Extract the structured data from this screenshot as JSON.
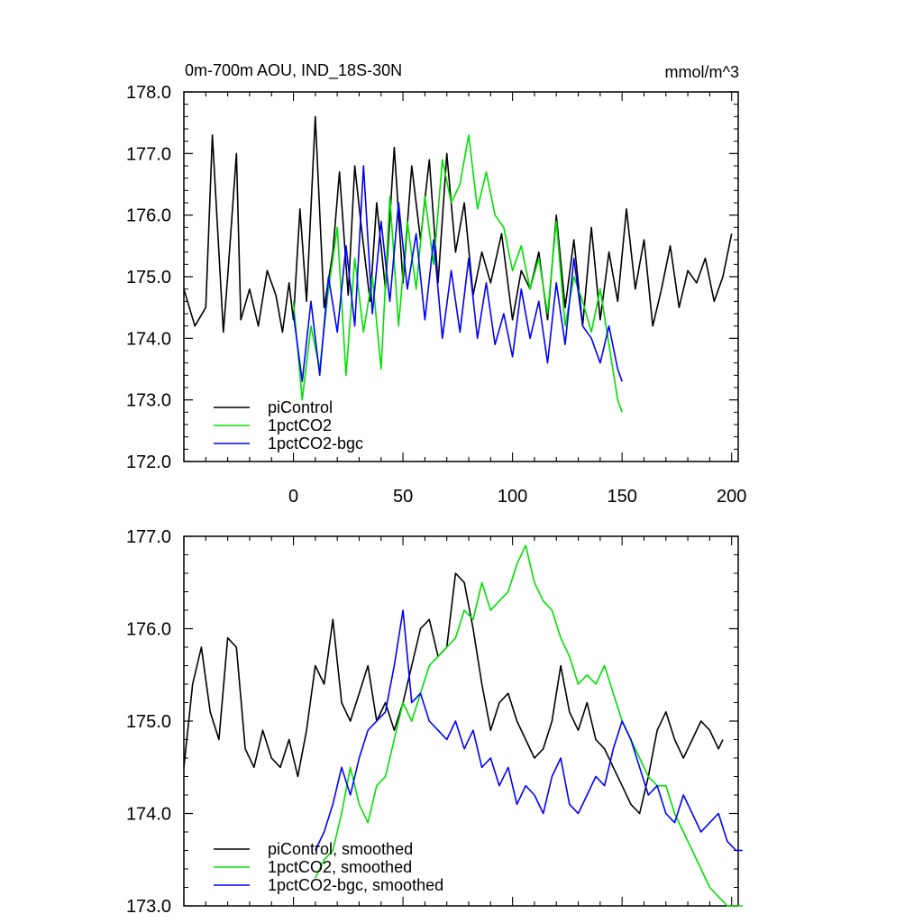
{
  "chart_data": [
    {
      "type": "line",
      "title": "0m-700m AOU, IND_18S-30N",
      "units": "mmol/m^3",
      "xlim": [
        -50,
        203
      ],
      "ylim": [
        172,
        178
      ],
      "xticks": [
        0,
        50,
        100,
        150,
        200
      ],
      "xtick_labels": [
        "0",
        "50",
        "100",
        "150",
        "200"
      ],
      "yticks": [
        172,
        173,
        174,
        175,
        176,
        177,
        178
      ],
      "ytick_labels": [
        "172.0",
        "173.0",
        "174.0",
        "175.0",
        "176.0",
        "177.0",
        "178.0"
      ],
      "legend_position": "bottom-left",
      "series": [
        {
          "name": "piControl",
          "color": "#000000",
          "x": [
            -50,
            -45,
            -40,
            -37,
            -32,
            -30,
            -26,
            -24,
            -20,
            -16,
            -12,
            -8,
            -5,
            -2,
            0,
            3,
            6,
            10,
            14,
            18,
            21,
            25,
            28,
            31,
            35,
            38,
            42,
            46,
            50,
            54,
            58,
            62,
            66,
            70,
            74,
            78,
            82,
            86,
            90,
            95,
            100,
            104,
            108,
            112,
            116,
            120,
            124,
            128,
            132,
            136,
            140,
            144,
            148,
            152,
            156,
            160,
            164,
            168,
            172,
            176,
            180,
            184,
            188,
            192,
            196,
            200
          ],
          "values": [
            174.8,
            174.2,
            174.5,
            177.3,
            174.1,
            175.0,
            177.0,
            174.3,
            174.8,
            174.2,
            175.1,
            174.7,
            174.1,
            174.9,
            174.3,
            176.1,
            174.6,
            177.6,
            174.5,
            175.4,
            176.7,
            174.7,
            176.8,
            175.8,
            174.6,
            176.2,
            174.8,
            177.1,
            174.9,
            176.8,
            175.6,
            176.9,
            174.9,
            177.0,
            175.4,
            176.2,
            174.7,
            175.4,
            174.9,
            175.7,
            174.3,
            175.1,
            174.8,
            175.4,
            174.3,
            176.0,
            174.5,
            175.6,
            174.2,
            175.8,
            174.3,
            175.4,
            174.6,
            176.1,
            174.8,
            175.6,
            174.2,
            174.8,
            175.5,
            174.5,
            175.1,
            174.9,
            175.3,
            174.6,
            175.0,
            175.7
          ]
        },
        {
          "name": "1pctCO2",
          "color": "#00e000",
          "x": [
            0,
            4,
            8,
            12,
            16,
            20,
            24,
            28,
            32,
            36,
            40,
            44,
            48,
            52,
            56,
            60,
            64,
            68,
            72,
            76,
            80,
            84,
            88,
            92,
            96,
            100,
            104,
            108,
            112,
            116,
            120,
            124,
            128,
            132,
            136,
            140,
            144,
            148,
            150
          ],
          "values": [
            174.6,
            173.0,
            174.2,
            173.5,
            174.8,
            175.8,
            173.4,
            175.3,
            174.1,
            175.0,
            173.5,
            176.3,
            174.2,
            175.9,
            174.8,
            176.3,
            175.2,
            176.9,
            176.2,
            176.5,
            177.3,
            176.1,
            176.7,
            176.0,
            175.8,
            175.1,
            175.5,
            174.8,
            175.3,
            174.4,
            175.9,
            174.2,
            175.0,
            174.6,
            174.1,
            174.8,
            173.9,
            173.0,
            172.8
          ]
        },
        {
          "name": "1pctCO2-bgc",
          "color": "#0000ff",
          "x": [
            0,
            4,
            8,
            12,
            16,
            20,
            24,
            28,
            32,
            36,
            40,
            44,
            48,
            52,
            56,
            60,
            64,
            68,
            72,
            76,
            80,
            84,
            88,
            92,
            96,
            100,
            104,
            108,
            112,
            116,
            120,
            124,
            128,
            132,
            136,
            140,
            144,
            148,
            150
          ],
          "values": [
            174.4,
            173.3,
            174.6,
            173.4,
            175.0,
            174.1,
            175.5,
            174.2,
            176.8,
            174.4,
            175.9,
            174.6,
            176.2,
            174.8,
            175.7,
            174.3,
            175.6,
            174.0,
            175.1,
            174.1,
            175.3,
            174.0,
            174.9,
            173.9,
            174.4,
            173.7,
            174.8,
            174.0,
            174.6,
            173.6,
            174.9,
            173.9,
            175.3,
            174.2,
            174.0,
            173.6,
            174.2,
            173.5,
            173.3
          ]
        }
      ]
    },
    {
      "type": "line",
      "title": "",
      "xlim": [
        -50,
        203
      ],
      "ylim": [
        173,
        177
      ],
      "xticks": [
        0,
        50,
        100,
        150,
        200
      ],
      "yticks": [
        173,
        174,
        175,
        176,
        177
      ],
      "ytick_labels": [
        "173.0",
        "174.0",
        "175.0",
        "176.0",
        "177.0"
      ],
      "legend_position": "bottom-left",
      "series": [
        {
          "name": "piControl, smoothed",
          "color": "#000000",
          "x": [
            -50,
            -46,
            -42,
            -38,
            -34,
            -30,
            -26,
            -22,
            -18,
            -14,
            -10,
            -6,
            -2,
            2,
            6,
            10,
            14,
            18,
            22,
            26,
            30,
            34,
            38,
            42,
            46,
            50,
            54,
            58,
            62,
            66,
            70,
            74,
            78,
            82,
            86,
            90,
            94,
            98,
            102,
            106,
            110,
            114,
            118,
            122,
            126,
            130,
            134,
            138,
            142,
            146,
            150,
            154,
            158,
            162,
            166,
            170,
            174,
            178,
            182,
            186,
            190,
            194,
            196
          ],
          "values": [
            174.5,
            175.4,
            175.8,
            175.1,
            174.8,
            175.9,
            175.8,
            174.7,
            174.5,
            174.9,
            174.6,
            174.5,
            174.8,
            174.4,
            174.9,
            175.6,
            175.4,
            176.1,
            175.2,
            175.0,
            175.3,
            175.6,
            175.0,
            175.2,
            174.9,
            175.2,
            175.6,
            176.0,
            176.1,
            175.7,
            175.8,
            176.6,
            176.5,
            176.0,
            175.4,
            174.9,
            175.2,
            175.3,
            175.0,
            174.8,
            174.6,
            174.7,
            175.0,
            175.6,
            175.1,
            174.9,
            175.2,
            174.8,
            174.7,
            174.5,
            174.3,
            174.1,
            174.0,
            174.4,
            174.9,
            175.1,
            174.8,
            174.6,
            174.8,
            175.0,
            174.9,
            174.7,
            174.8
          ]
        },
        {
          "name": "1pctCO2, smoothed",
          "color": "#00e000",
          "x": [
            10,
            14,
            18,
            22,
            26,
            30,
            34,
            38,
            42,
            46,
            50,
            54,
            58,
            62,
            66,
            70,
            74,
            78,
            82,
            86,
            90,
            94,
            98,
            102,
            106,
            110,
            114,
            118,
            122,
            126,
            130,
            134,
            138,
            142,
            146,
            150,
            154,
            158,
            162,
            166,
            170,
            174,
            178,
            182,
            186,
            190,
            194,
            198,
            202,
            205
          ],
          "values": [
            173.3,
            173.5,
            173.6,
            174.0,
            174.5,
            174.1,
            173.9,
            174.3,
            174.4,
            174.8,
            175.2,
            175.0,
            175.3,
            175.6,
            175.7,
            175.8,
            175.9,
            176.2,
            176.1,
            176.5,
            176.2,
            176.3,
            176.4,
            176.7,
            176.9,
            176.5,
            176.3,
            176.2,
            175.9,
            175.7,
            175.4,
            175.5,
            175.4,
            175.6,
            175.3,
            175.0,
            174.8,
            174.6,
            174.4,
            174.3,
            174.3,
            174.0,
            173.8,
            173.6,
            173.4,
            173.2,
            173.1,
            173.0,
            173.0,
            173.0
          ]
        },
        {
          "name": "1pctCO2-bgc, smoothed",
          "color": "#0000ff",
          "x": [
            10,
            14,
            18,
            22,
            26,
            30,
            34,
            38,
            42,
            46,
            50,
            54,
            58,
            62,
            66,
            70,
            74,
            78,
            82,
            86,
            90,
            94,
            98,
            102,
            106,
            110,
            114,
            118,
            122,
            126,
            130,
            134,
            138,
            142,
            146,
            150,
            154,
            158,
            162,
            166,
            170,
            174,
            178,
            182,
            186,
            190,
            194,
            198,
            202,
            205
          ],
          "values": [
            173.6,
            173.8,
            174.1,
            174.5,
            174.2,
            174.6,
            174.9,
            175.0,
            175.1,
            175.6,
            176.2,
            175.2,
            175.3,
            175.0,
            174.9,
            174.8,
            175.0,
            174.7,
            174.9,
            174.5,
            174.6,
            174.3,
            174.5,
            174.1,
            174.3,
            174.2,
            174.0,
            174.4,
            174.6,
            174.1,
            174.0,
            174.2,
            174.4,
            174.3,
            174.7,
            175.0,
            174.8,
            174.5,
            174.2,
            174.3,
            174.0,
            173.9,
            174.2,
            174.0,
            173.8,
            173.9,
            174.0,
            173.7,
            173.6,
            173.6
          ]
        }
      ]
    }
  ]
}
